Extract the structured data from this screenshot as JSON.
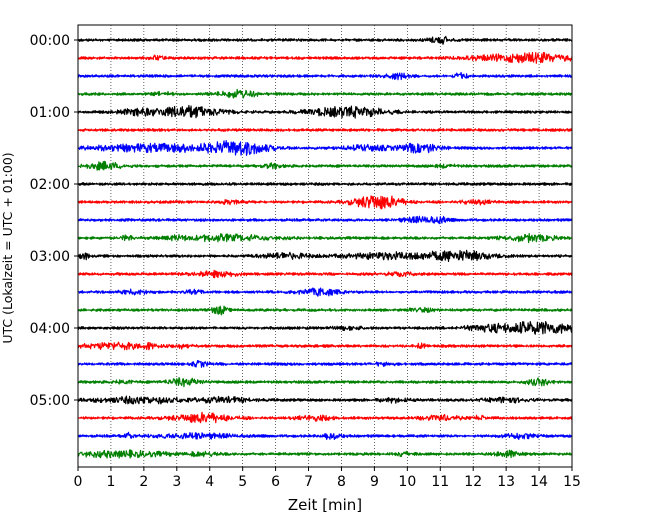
{
  "chart_data": {
    "type": "line",
    "subtype": "helicorder",
    "title": "",
    "xlabel": "Zeit  [min]",
    "ylabel": "UTC (Lokalzeit = UTC + 01:00)",
    "xlim": [
      0,
      15
    ],
    "x_ticks": [
      "0",
      "1",
      "2",
      "3",
      "4",
      "5",
      "6",
      "7",
      "8",
      "9",
      "10",
      "11",
      "12",
      "13",
      "14",
      "15"
    ],
    "y_tick_labels": [
      {
        "row": 0,
        "label": "00:00"
      },
      {
        "row": 4,
        "label": "01:00"
      },
      {
        "row": 8,
        "label": "02:00"
      },
      {
        "row": 12,
        "label": "03:00"
      },
      {
        "row": 16,
        "label": "04:00"
      },
      {
        "row": 20,
        "label": "05:00"
      }
    ],
    "grid": "vertical dotted at each minute",
    "color_cycle": [
      "#000000",
      "#ff0000",
      "#0000ff",
      "#008000"
    ],
    "traces": [
      {
        "start": "00:00",
        "bursts": [
          [
            11.0,
            0.25,
            0.35
          ]
        ]
      },
      {
        "start": "00:15",
        "bursts": [
          [
            14.0,
            0.7,
            0.45
          ],
          [
            12.5,
            0.6,
            0.2
          ],
          [
            2.4,
            0.15,
            0.25
          ]
        ]
      },
      {
        "start": "00:30",
        "bursts": [
          [
            9.7,
            0.25,
            0.25
          ],
          [
            11.6,
            0.15,
            0.3
          ]
        ]
      },
      {
        "start": "00:45",
        "bursts": [
          [
            4.9,
            0.4,
            0.35
          ],
          [
            2.6,
            0.2,
            0.15
          ]
        ]
      },
      {
        "start": "01:00",
        "bursts": [
          [
            3.3,
            0.7,
            0.55
          ],
          [
            8.2,
            0.8,
            0.5
          ],
          [
            1.8,
            0.4,
            0.25
          ]
        ]
      },
      {
        "start": "01:15",
        "bursts": []
      },
      {
        "start": "01:30",
        "bursts": [
          [
            4.9,
            0.6,
            0.6
          ],
          [
            2.5,
            1.5,
            0.35
          ],
          [
            10.4,
            0.4,
            0.45
          ],
          [
            8.8,
            0.5,
            0.25
          ]
        ]
      },
      {
        "start": "01:45",
        "bursts": [
          [
            0.8,
            0.4,
            0.35
          ],
          [
            5.9,
            0.2,
            0.2
          ],
          [
            11.2,
            0.2,
            0.15
          ]
        ]
      },
      {
        "start": "02:00",
        "bursts": []
      },
      {
        "start": "02:15",
        "bursts": [
          [
            9.1,
            0.5,
            0.7
          ],
          [
            4.6,
            0.2,
            0.15
          ],
          [
            12.1,
            0.3,
            0.2
          ]
        ]
      },
      {
        "start": "02:30",
        "bursts": [
          [
            10.4,
            0.4,
            0.25
          ],
          [
            11.0,
            0.2,
            0.2
          ]
        ]
      },
      {
        "start": "02:45",
        "bursts": [
          [
            4.5,
            1.0,
            0.3
          ],
          [
            13.7,
            0.5,
            0.35
          ],
          [
            1.5,
            0.15,
            0.2
          ],
          [
            3.0,
            0.15,
            0.15
          ]
        ]
      },
      {
        "start": "03:00",
        "bursts": [
          [
            11.6,
            0.7,
            0.45
          ],
          [
            9.5,
            1.0,
            0.3
          ],
          [
            6.3,
            0.5,
            0.25
          ],
          [
            0.2,
            0.1,
            0.3
          ]
        ]
      },
      {
        "start": "03:15",
        "bursts": [
          [
            4.2,
            0.5,
            0.25
          ],
          [
            9.8,
            0.3,
            0.15
          ]
        ]
      },
      {
        "start": "03:30",
        "bursts": [
          [
            7.3,
            0.4,
            0.35
          ],
          [
            1.7,
            0.3,
            0.2
          ],
          [
            3.5,
            0.2,
            0.15
          ]
        ]
      },
      {
        "start": "03:45",
        "bursts": [
          [
            4.3,
            0.15,
            0.45
          ],
          [
            10.5,
            0.3,
            0.15
          ]
        ]
      },
      {
        "start": "04:00",
        "bursts": [
          [
            14.0,
            0.8,
            0.6
          ],
          [
            12.4,
            0.5,
            0.25
          ],
          [
            8.2,
            0.3,
            0.15
          ]
        ]
      },
      {
        "start": "04:15",
        "bursts": [
          [
            1.1,
            0.7,
            0.3
          ],
          [
            2.2,
            0.1,
            0.3
          ],
          [
            3.1,
            0.2,
            0.2
          ],
          [
            10.4,
            0.1,
            0.2
          ]
        ]
      },
      {
        "start": "04:30",
        "bursts": [
          [
            3.7,
            0.15,
            0.25
          ],
          [
            9.3,
            0.2,
            0.15
          ]
        ]
      },
      {
        "start": "04:45",
        "bursts": [
          [
            3.2,
            0.35,
            0.35
          ],
          [
            14.0,
            0.25,
            0.3
          ],
          [
            1.4,
            0.2,
            0.15
          ]
        ]
      },
      {
        "start": "05:00",
        "bursts": [
          [
            2.0,
            1.0,
            0.3
          ],
          [
            4.5,
            0.5,
            0.25
          ],
          [
            9.6,
            0.3,
            0.2
          ],
          [
            13.0,
            0.5,
            0.2
          ]
        ]
      },
      {
        "start": "05:15",
        "bursts": [
          [
            3.8,
            0.6,
            0.45
          ],
          [
            11.0,
            0.4,
            0.25
          ],
          [
            7.2,
            0.4,
            0.2
          ],
          [
            12.2,
            0.1,
            0.25
          ]
        ]
      },
      {
        "start": "05:30",
        "bursts": [
          [
            3.5,
            0.8,
            0.25
          ],
          [
            7.7,
            0.2,
            0.3
          ],
          [
            13.4,
            0.3,
            0.25
          ],
          [
            1.5,
            0.1,
            0.25
          ]
        ]
      },
      {
        "start": "05:45",
        "bursts": [
          [
            1.2,
            1.0,
            0.3
          ],
          [
            13.1,
            0.25,
            0.3
          ],
          [
            3.8,
            0.3,
            0.2
          ],
          [
            9.9,
            0.2,
            0.15
          ]
        ]
      }
    ]
  }
}
